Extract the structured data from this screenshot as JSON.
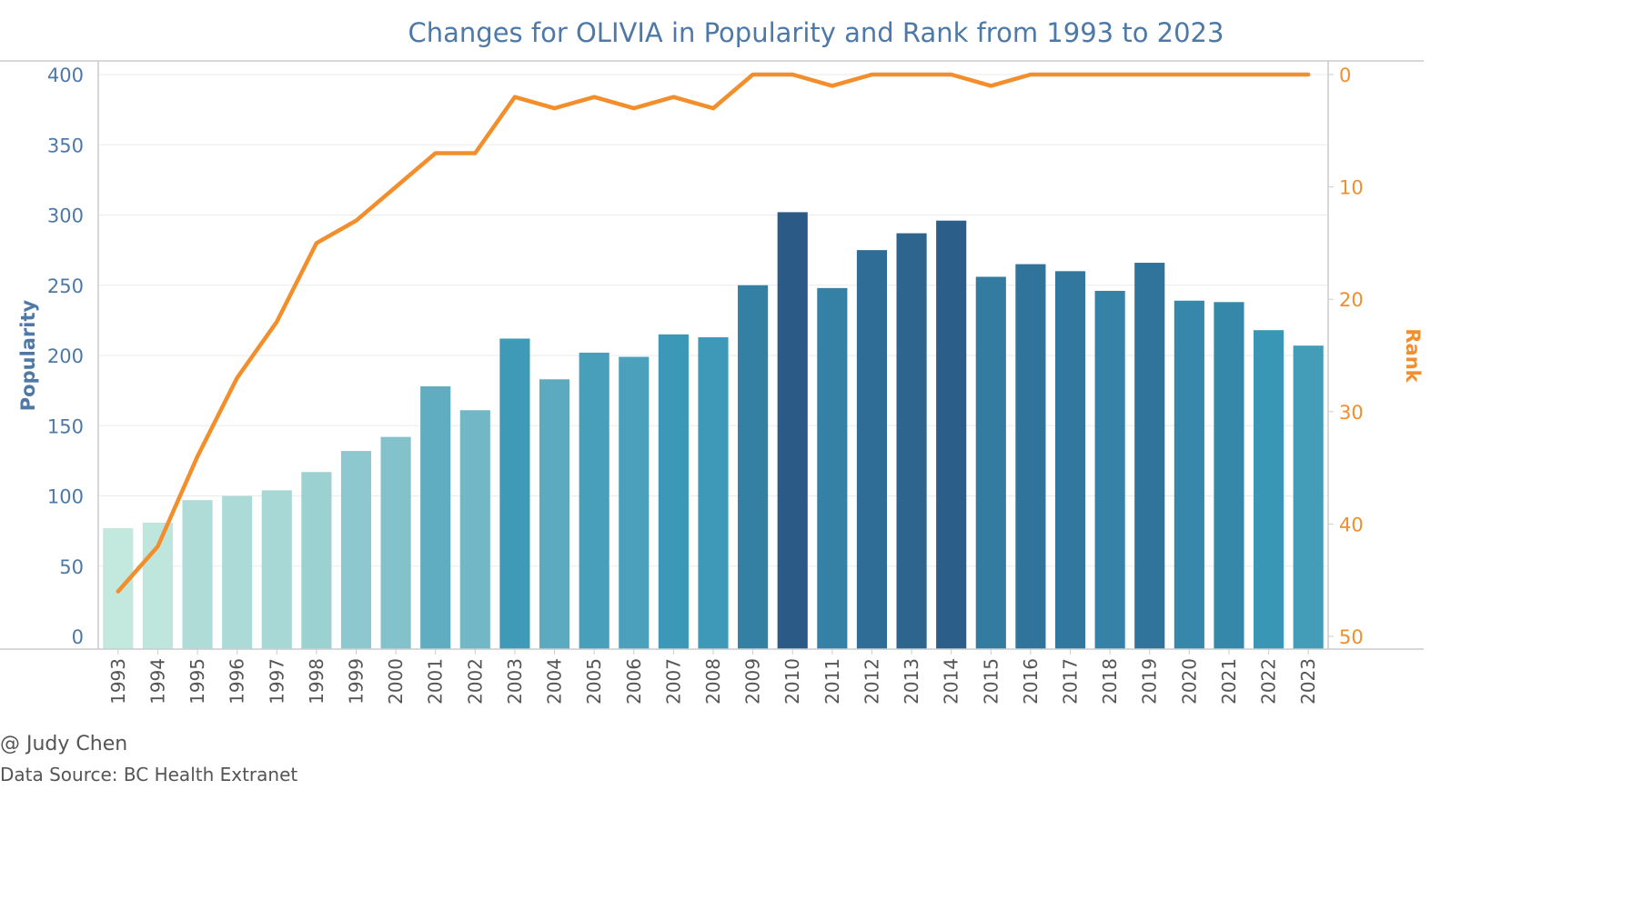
{
  "footer": {
    "credit": "@ Judy Chen",
    "source": "Data Source: BC Health Extranet"
  },
  "colors": {
    "title": "#4e79a7",
    "left_axis": "#4e79a7",
    "right_axis": "#f28e2b",
    "line": "#f28e2b",
    "bar_light": "#c3e8dd",
    "bar_mid": "#3a97b6",
    "bar_dark": "#2b5a87",
    "gridline": "#ebebeb",
    "axis_rule": "#cccccc"
  },
  "chart_data": {
    "type": "bar",
    "combined_with": "line",
    "title": "Changes for OLIVIA in Popularity and Rank from 1993 to 2023",
    "categories": [
      "1993",
      "1994",
      "1995",
      "1996",
      "1997",
      "1998",
      "1999",
      "2000",
      "2001",
      "2002",
      "2003",
      "2004",
      "2005",
      "2006",
      "2007",
      "2008",
      "2009",
      "2010",
      "2011",
      "2012",
      "2013",
      "2014",
      "2015",
      "2016",
      "2017",
      "2018",
      "2019",
      "2020",
      "2021",
      "2022",
      "2023"
    ],
    "series": [
      {
        "name": "Popularity",
        "type": "bar",
        "axis": "left",
        "values": [
          77,
          81,
          97,
          100,
          104,
          117,
          132,
          142,
          178,
          161,
          212,
          183,
          202,
          199,
          215,
          213,
          250,
          302,
          248,
          275,
          287,
          296,
          256,
          265,
          260,
          246,
          266,
          239,
          238,
          218,
          207
        ]
      },
      {
        "name": "Rank",
        "type": "line",
        "axis": "right",
        "values": [
          46,
          42,
          34,
          27,
          22,
          15,
          13,
          10,
          7,
          7,
          2,
          3,
          2,
          3,
          2,
          3,
          0,
          0,
          1,
          0,
          0,
          0,
          1,
          0,
          0,
          0,
          0,
          0,
          0,
          0,
          0
        ]
      }
    ],
    "ylabel": "Popularity",
    "ylim": [
      0,
      400
    ],
    "yticks": [
      0,
      50,
      100,
      150,
      200,
      250,
      300,
      350,
      400
    ],
    "y2label": "Rank",
    "y2lim": [
      0,
      50
    ],
    "y2_reversed": true,
    "y2ticks": [
      0,
      10,
      20,
      30,
      40,
      50
    ],
    "grid": true,
    "x_tick_rotation": "vertical"
  }
}
